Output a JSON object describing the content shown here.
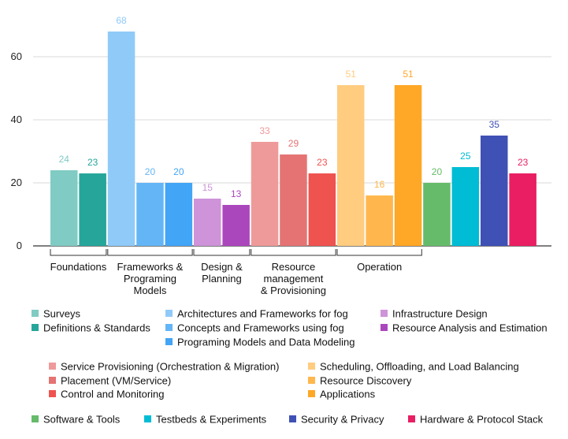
{
  "chart_data": {
    "type": "bar",
    "title": "",
    "xlabel": "",
    "ylabel": "",
    "ylim": [
      0,
      75
    ],
    "yticks": [
      0,
      20,
      40,
      60
    ],
    "grid": true,
    "legend_position": "bottom",
    "series": [
      {
        "name": "Surveys",
        "value": 24,
        "color": "#80CBC4",
        "group": 0
      },
      {
        "name": "Definitions & Standards",
        "value": 23,
        "color": "#26A69A",
        "group": 0
      },
      {
        "name": "Architectures and Frameworks for fog",
        "value": 68,
        "color": "#90CAF9",
        "group": 1
      },
      {
        "name": "Concepts and Frameworks using fog",
        "value": 20,
        "color": "#64B5F6",
        "group": 1
      },
      {
        "name": "Programing Models and Data Modeling",
        "value": 20,
        "color": "#42A5F5",
        "group": 1
      },
      {
        "name": "Infrastructure Design",
        "value": 15,
        "color": "#CE93D8",
        "group": 2
      },
      {
        "name": "Resource Analysis and Estimation",
        "value": 13,
        "color": "#AB47BC",
        "group": 2
      },
      {
        "name": "Service Provisioning (Orchestration & Migration)",
        "value": 33,
        "color": "#EF9A9A",
        "group": 3
      },
      {
        "name": "Placement (VM/Service)",
        "value": 29,
        "color": "#E57373",
        "group": 3
      },
      {
        "name": "Control and Monitoring",
        "value": 23,
        "color": "#EF5350",
        "group": 3
      },
      {
        "name": "Scheduling, Offloading, and Load Balancing",
        "value": 51,
        "color": "#FFCC80",
        "group": 4
      },
      {
        "name": "Resource Discovery",
        "value": 16,
        "color": "#FFB74D",
        "group": 4
      },
      {
        "name": "Applications",
        "value": 51,
        "color": "#FFA726",
        "group": 4
      },
      {
        "name": "Software & Tools",
        "value": 20,
        "color": "#66BB6A",
        "group": null
      },
      {
        "name": "Testbeds & Experiments",
        "value": 25,
        "color": "#00BCD4",
        "group": null
      },
      {
        "name": "Security & Privacy",
        "value": 35,
        "color": "#3F51B5",
        "group": null
      },
      {
        "name": "Hardware & Protocol Stack",
        "value": 23,
        "color": "#E91E63",
        "group": null
      }
    ],
    "groups": [
      {
        "label": [
          "Foundations"
        ]
      },
      {
        "label": [
          "Frameworks &",
          "Programing",
          "Models"
        ]
      },
      {
        "label": [
          "Design &",
          "Planning"
        ]
      },
      {
        "label": [
          "Resource",
          "management",
          "& Provisioning"
        ]
      },
      {
        "label": [
          "Operation"
        ]
      }
    ],
    "legend": [
      {
        "text": "Surveys",
        "series": 0
      },
      {
        "text": "Definitions & Standards",
        "series": 1
      },
      {
        "text": "Architectures and Frameworks for fog",
        "series": 2
      },
      {
        "text": "Concepts and Frameworks using fog",
        "series": 3
      },
      {
        "text": "Programing Models and Data Modeling",
        "series": 4
      },
      {
        "text": "Infrastructure Design",
        "series": 5
      },
      {
        "text": "Resource Analysis and Estimation",
        "series": 6
      },
      {
        "text": "Service Provisioning (Orchestration & Migration)",
        "series": 7
      },
      {
        "text": "Placement (VM/Service)",
        "series": 8
      },
      {
        "text": "Control and Monitoring",
        "series": 9
      },
      {
        "text": "Scheduling, Offloading, and Load Balancing",
        "series": 10
      },
      {
        "text": "Resource Discovery",
        "series": 11
      },
      {
        "text": "Applications",
        "series": 12
      },
      {
        "text": "Software & Tools",
        "series": 13
      },
      {
        "text": "Testbeds & Experiments",
        "series": 14
      },
      {
        "text": "Security & Privacy",
        "series": 15
      },
      {
        "text": "Hardware & Protocol Stack",
        "series": 16
      }
    ]
  }
}
